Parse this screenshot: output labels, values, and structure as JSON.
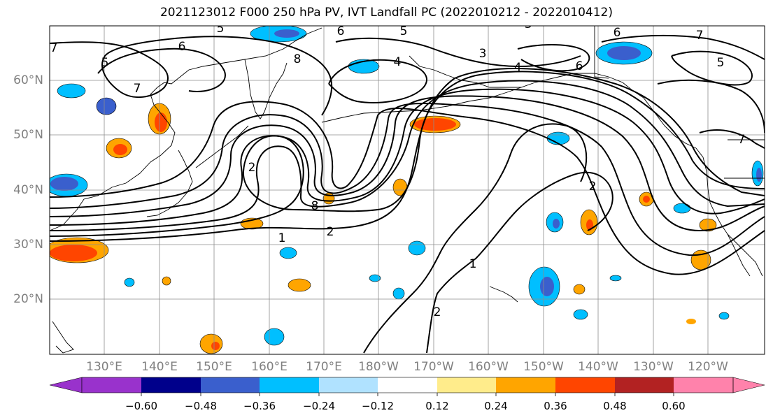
{
  "title": "2021123012 F000 250 hPa PV, IVT Landfall PC (2022010212 - 2022010412)",
  "map": {
    "projection": "PlateCarree",
    "lon_range": [
      120,
      250
    ],
    "lat_range": [
      10,
      70
    ],
    "gridlines": true,
    "lat_labels": [
      "60°N",
      "50°N",
      "40°N",
      "30°N",
      "20°N"
    ],
    "lon_labels": [
      "130°E",
      "140°E",
      "150°E",
      "160°E",
      "170°E",
      "180°W",
      "170°W",
      "160°W",
      "150°W",
      "140°W",
      "130°W",
      "120°W"
    ],
    "contour_labels": [
      "1",
      "2",
      "2",
      "3",
      "4",
      "5",
      "6",
      "7",
      "8"
    ]
  },
  "colorbar": {
    "colors": [
      "#9932cc",
      "#00008b",
      "#3a5fcd",
      "#00bfff",
      "#b0e2ff",
      "#ffffff",
      "#ffec8b",
      "#ffa500",
      "#ff4500",
      "#b22222",
      "#ff82ab"
    ],
    "tick_labels": [
      "−0.60",
      "−0.48",
      "−0.36",
      "−0.24",
      "−0.12",
      "0.12",
      "0.24",
      "0.36",
      "0.48",
      "0.60"
    ],
    "extend": "both"
  }
}
